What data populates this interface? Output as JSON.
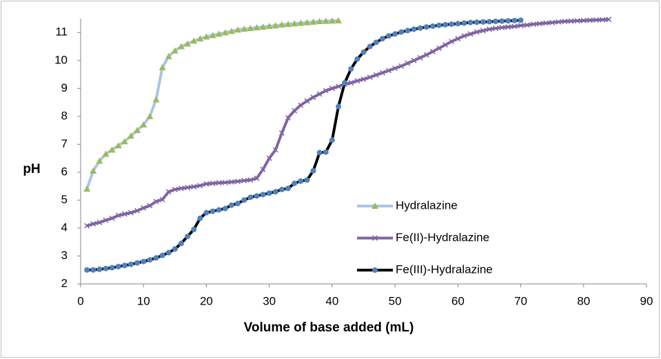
{
  "chart_data": {
    "type": "line",
    "xlabel": "Volume of base added (mL)",
    "ylabel": "pH",
    "xlim": [
      0,
      90
    ],
    "xticks": [
      0,
      10,
      20,
      30,
      40,
      50,
      60,
      70,
      80,
      90
    ],
    "ylim": [
      2,
      11.5
    ],
    "yticks": [
      2,
      3,
      4,
      5,
      6,
      7,
      8,
      9,
      10,
      11
    ],
    "grid": false,
    "legend": "center",
    "series": [
      {
        "name": "Hydralazine",
        "color": "#a9c4e8",
        "marker": "triangle",
        "marker_color": "#9bbb59",
        "x": [
          1,
          2,
          3,
          4,
          5,
          6,
          7,
          8,
          9,
          10,
          11,
          12,
          13,
          14,
          15,
          16,
          17,
          18,
          19,
          20,
          21,
          22,
          23,
          24,
          25,
          26,
          27,
          28,
          29,
          30,
          31,
          32,
          33,
          34,
          35,
          36,
          37,
          38,
          39,
          40,
          41
        ],
        "values": [
          5.4,
          6.05,
          6.4,
          6.65,
          6.8,
          6.95,
          7.1,
          7.3,
          7.5,
          7.7,
          8.0,
          8.6,
          9.75,
          10.15,
          10.35,
          10.5,
          10.6,
          10.7,
          10.78,
          10.85,
          10.9,
          10.95,
          11.0,
          11.05,
          11.1,
          11.13,
          11.15,
          11.18,
          11.2,
          11.23,
          11.25,
          11.28,
          11.3,
          11.32,
          11.34,
          11.36,
          11.38,
          11.4,
          11.41,
          11.42,
          11.43
        ]
      },
      {
        "name": "Fe(II)-Hydralazine",
        "color": "#8064a2",
        "marker": "cross",
        "marker_color": "#8064a2",
        "x": [
          1,
          2,
          3,
          4,
          5,
          6,
          7,
          8,
          9,
          10,
          11,
          12,
          13,
          14,
          15,
          16,
          17,
          18,
          19,
          20,
          21,
          22,
          23,
          24,
          25,
          26,
          27,
          28,
          29,
          30,
          31,
          32,
          33,
          34,
          35,
          36,
          37,
          38,
          39,
          40,
          41,
          42,
          43,
          44,
          45,
          46,
          47,
          48,
          49,
          50,
          51,
          52,
          53,
          54,
          55,
          56,
          57,
          58,
          59,
          60,
          61,
          62,
          63,
          64,
          65,
          66,
          67,
          68,
          69,
          70,
          71,
          72,
          73,
          74,
          75,
          76,
          77,
          78,
          79,
          80,
          81,
          82,
          83,
          84
        ],
        "values": [
          4.08,
          4.15,
          4.2,
          4.28,
          4.35,
          4.45,
          4.5,
          4.55,
          4.62,
          4.72,
          4.8,
          4.95,
          5.02,
          5.3,
          5.38,
          5.42,
          5.45,
          5.48,
          5.52,
          5.58,
          5.6,
          5.62,
          5.63,
          5.65,
          5.67,
          5.7,
          5.72,
          5.78,
          6.1,
          6.5,
          6.8,
          7.4,
          7.95,
          8.2,
          8.4,
          8.55,
          8.68,
          8.8,
          8.92,
          9.0,
          9.07,
          9.15,
          9.2,
          9.27,
          9.33,
          9.4,
          9.48,
          9.56,
          9.64,
          9.72,
          9.8,
          9.9,
          10.0,
          10.1,
          10.2,
          10.32,
          10.44,
          10.56,
          10.68,
          10.78,
          10.88,
          10.95,
          11.02,
          11.07,
          11.12,
          11.15,
          11.18,
          11.2,
          11.22,
          11.25,
          11.27,
          11.3,
          11.32,
          11.34,
          11.36,
          11.38,
          11.4,
          11.41,
          11.42,
          11.43,
          11.44,
          11.45,
          11.46,
          11.47
        ]
      },
      {
        "name": "Fe(III)-Hydralazine",
        "color": "#000000",
        "marker": "circle",
        "marker_color": "#4f81bd",
        "x": [
          1,
          2,
          3,
          4,
          5,
          6,
          7,
          8,
          9,
          10,
          11,
          12,
          13,
          14,
          15,
          16,
          17,
          18,
          19,
          20,
          21,
          22,
          23,
          24,
          25,
          26,
          27,
          28,
          29,
          30,
          31,
          32,
          33,
          34,
          35,
          36,
          37,
          38,
          39,
          40,
          41,
          42,
          43,
          44,
          45,
          46,
          47,
          48,
          49,
          50,
          51,
          52,
          53,
          54,
          55,
          56,
          57,
          58,
          59,
          60,
          61,
          62,
          63,
          64,
          65,
          66,
          67,
          68,
          69,
          70
        ],
        "values": [
          2.5,
          2.5,
          2.52,
          2.55,
          2.58,
          2.62,
          2.66,
          2.7,
          2.75,
          2.8,
          2.86,
          2.93,
          3.02,
          3.12,
          3.25,
          3.45,
          3.7,
          3.95,
          4.35,
          4.55,
          4.6,
          4.65,
          4.7,
          4.82,
          4.88,
          5.0,
          5.1,
          5.15,
          5.2,
          5.25,
          5.3,
          5.38,
          5.42,
          5.6,
          5.68,
          5.72,
          6.05,
          6.7,
          6.72,
          7.15,
          8.35,
          9.2,
          9.7,
          10.05,
          10.3,
          10.5,
          10.65,
          10.78,
          10.88,
          10.95,
          11.02,
          11.07,
          11.12,
          11.16,
          11.2,
          11.23,
          11.26,
          11.28,
          11.3,
          11.32,
          11.34,
          11.36,
          11.37,
          11.38,
          11.39,
          11.4,
          11.41,
          11.42,
          11.43,
          11.44
        ]
      }
    ]
  }
}
